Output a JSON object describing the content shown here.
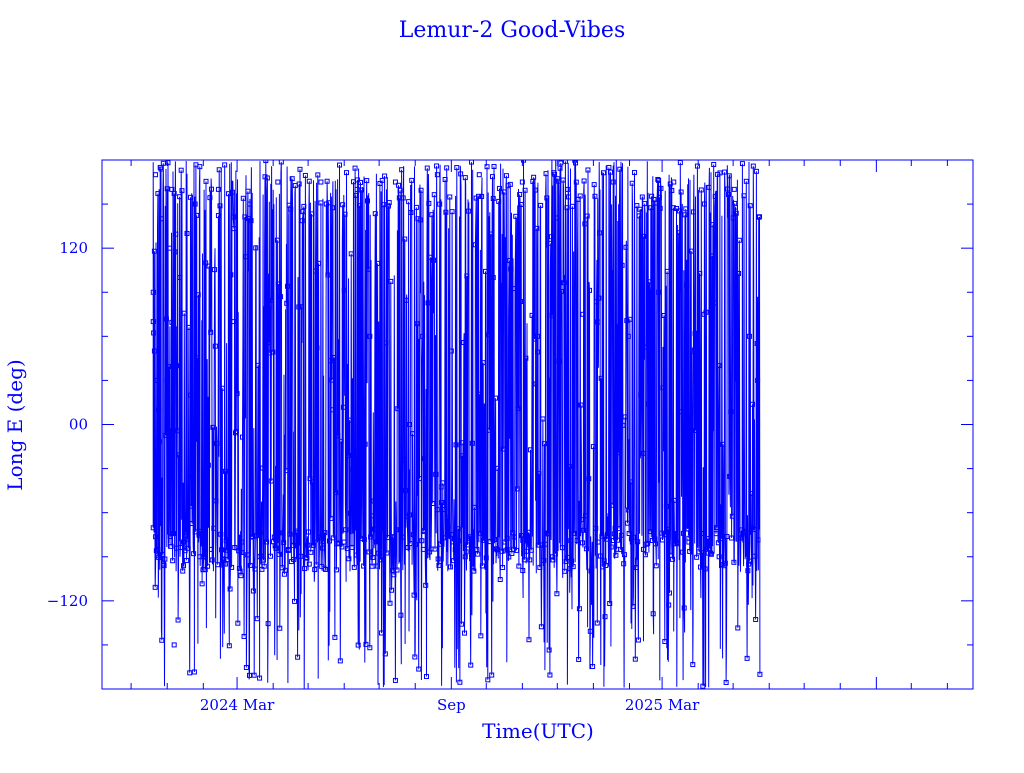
{
  "chart_data": {
    "type": "line",
    "title": "Lemur-2 Good-Vibes",
    "xlabel": "Time(UTC)",
    "ylabel": "Long E (deg)",
    "x_ticks": [
      "2024 Mar",
      "Sep",
      "2025 Mar"
    ],
    "y_ticks": [
      {
        "value": 120,
        "label": "120"
      },
      {
        "value": 0,
        "label": "00"
      },
      {
        "value": -120,
        "label": "−120"
      }
    ],
    "xlim": [
      "2023-11-06",
      "2025-11-23"
    ],
    "ylim": [
      -180,
      180
    ],
    "x_range_data": [
      "2023-12-20",
      "2025-05-24"
    ],
    "series": [
      {
        "color": "#0000ff",
        "marker": "square",
        "values": [
          [
            "2023-12-20",
            90
          ],
          [
            "2023-12-20",
            70
          ],
          [
            "2023-12-21",
            50
          ],
          [
            "2023-12-22",
            -20
          ],
          [
            "2023-12-22",
            170
          ],
          [
            "2023-12-23",
            30
          ],
          [
            "2023-12-24",
            -85
          ],
          [
            "2023-12-25",
            10
          ],
          [
            "2023-12-27",
            140
          ],
          [
            "2023-12-29",
            -95
          ],
          [
            "2024-01-01",
            30
          ],
          [
            "2024-01-03",
            120
          ],
          [
            "2024-01-05",
            160
          ],
          [
            "2024-01-07",
            -150
          ],
          [
            "2024-01-09",
            40
          ],
          [
            "2024-01-12",
            100
          ],
          [
            "2024-01-15",
            -80
          ],
          [
            "2024-01-18",
            130
          ],
          [
            "2024-01-21",
            20
          ],
          [
            "2024-01-25",
            150
          ],
          [
            "2024-01-29",
            -90
          ],
          [
            "2024-02-03",
            110
          ],
          [
            "2024-02-08",
            -85
          ],
          [
            "2024-02-14",
            160
          ],
          [
            "2024-02-20",
            -95
          ],
          [
            "2024-02-27",
            70
          ],
          [
            "2024-03-05",
            -80
          ],
          [
            "2024-03-12",
            150
          ],
          [
            "2024-03-20",
            -90
          ],
          [
            "2024-03-28",
            60
          ],
          [
            "2024-04-05",
            165
          ],
          [
            "2024-04-14",
            -85
          ],
          [
            "2024-04-23",
            80
          ],
          [
            "2024-05-02",
            -95
          ],
          [
            "2024-05-12",
            165
          ],
          [
            "2024-05-22",
            10
          ],
          [
            "2024-06-01",
            -80
          ],
          [
            "2024-06-12",
            160
          ],
          [
            "2024-06-23",
            60
          ],
          [
            "2024-07-04",
            -90
          ],
          [
            "2024-07-15",
            165
          ],
          [
            "2024-07-27",
            0
          ],
          [
            "2024-08-08",
            -85
          ],
          [
            "2024-08-20",
            170
          ],
          [
            "2024-09-01",
            50
          ],
          [
            "2024-09-13",
            -90
          ],
          [
            "2024-09-25",
            170
          ],
          [
            "2024-10-07",
            100
          ],
          [
            "2024-10-19",
            -85
          ],
          [
            "2024-11-01",
            165
          ],
          [
            "2024-11-14",
            60
          ],
          [
            "2024-11-27",
            -90
          ],
          [
            "2024-12-10",
            160
          ],
          [
            "2024-12-23",
            75
          ],
          [
            "2025-01-05",
            -80
          ],
          [
            "2025-01-18",
            165
          ],
          [
            "2025-01-31",
            60
          ],
          [
            "2025-02-13",
            -85
          ],
          [
            "2025-02-26",
            90
          ],
          [
            "2025-03-11",
            165
          ],
          [
            "2025-03-24",
            -80
          ],
          [
            "2025-04-06",
            75
          ],
          [
            "2025-04-19",
            -90
          ],
          [
            "2025-05-02",
            160
          ],
          [
            "2025-05-15",
            60
          ],
          [
            "2025-05-22",
            30
          ],
          [
            "2025-05-24",
            -170
          ]
        ]
      }
    ],
    "grid": false,
    "legend": "none"
  }
}
